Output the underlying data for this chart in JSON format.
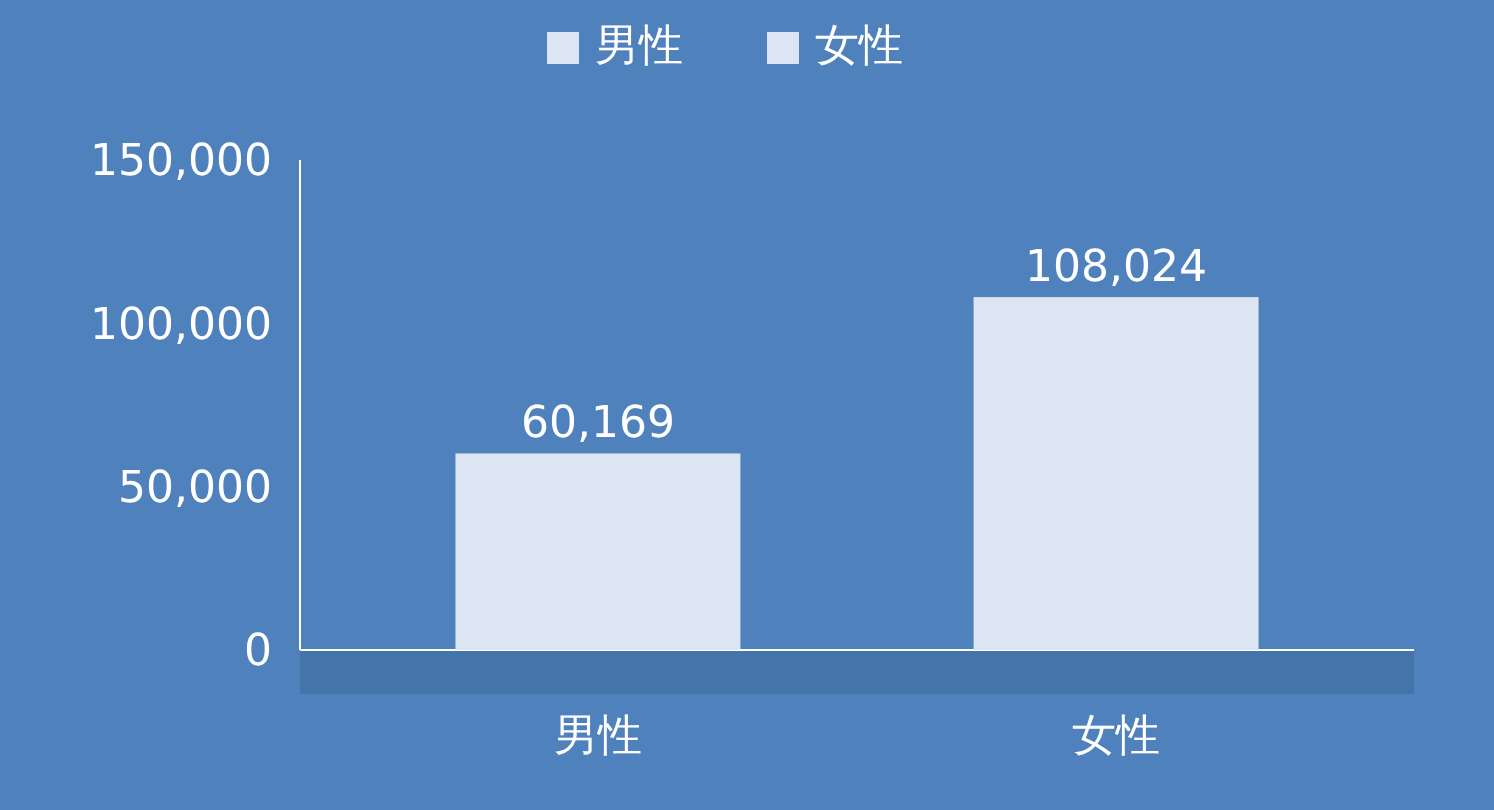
{
  "chart_data": {
    "type": "bar",
    "categories": [
      "男性",
      "女性"
    ],
    "series": [
      {
        "name": "男性",
        "color": "#dce6f2",
        "values": [
          60169,
          null
        ],
        "value_labels": [
          "60,169",
          null
        ]
      },
      {
        "name": "女性",
        "color": "#dce6f2",
        "values": [
          null,
          108024
        ],
        "value_labels": [
          null,
          "108,024"
        ]
      }
    ],
    "ylim": [
      0,
      150000
    ],
    "yticks": [
      {
        "value": 0,
        "label": "0"
      },
      {
        "value": 50000,
        "label": "50,000"
      },
      {
        "value": 100000,
        "label": "100,000"
      },
      {
        "value": 150000,
        "label": "150,000"
      }
    ],
    "legend": "top",
    "grid": false
  }
}
